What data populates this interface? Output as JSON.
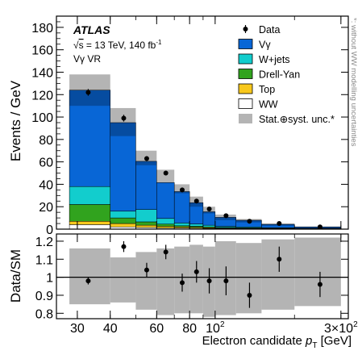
{
  "chart_data": [
    {
      "type": "bar",
      "stacked": true,
      "x_scale": "log",
      "bin_edges": [
        28,
        40,
        50,
        60,
        70,
        80,
        90,
        100,
        120,
        150,
        200,
        300
      ],
      "xlim": [
        25,
        320
      ],
      "ylim": [
        0,
        190
      ],
      "ylabel": "Events / GeV",
      "y_ticks": [
        0,
        20,
        40,
        60,
        80,
        100,
        120,
        140,
        160,
        180
      ],
      "experiment": "ATLAS",
      "info_line1_prefix": "s",
      "info_line1": " = 13 TeV, 140 fb",
      "info_line1_sup": "-1",
      "info_line2": "Vγ VR",
      "side_note": "*: without WW modelling uncertainties",
      "series": [
        {
          "name": "WW",
          "color": "#ffffff",
          "values": [
            4,
            2,
            1.5,
            1,
            1,
            0.8,
            0.6,
            0.5,
            0.4,
            0.3,
            0.2
          ]
        },
        {
          "name": "Top",
          "color": "#f8c81c",
          "values": [
            3,
            3,
            2,
            1.5,
            1,
            0.8,
            0.6,
            0.4,
            0.3,
            0.2,
            0.1
          ]
        },
        {
          "name": "Drell-Yan",
          "color": "#31a31e",
          "values": [
            15,
            5,
            3,
            2,
            1,
            1,
            0.8,
            0.6,
            0.4,
            0.3,
            0.2
          ]
        },
        {
          "name": "W+jets",
          "color": "#12cdcd",
          "values": [
            16,
            6,
            11,
            5,
            2.5,
            2,
            1.5,
            1,
            0.8,
            0.5,
            0.3
          ]
        },
        {
          "name": "Vγ",
          "color": "#0866d6",
          "values": [
            86,
            79,
            43,
            32,
            28,
            19,
            12,
            8,
            6,
            3,
            1.2
          ]
        }
      ],
      "uncertainty": {
        "name": "Stat.⊕syst. unc.*",
        "color": "#b4b4b4",
        "up": [
          138,
          108,
          70,
          53,
          40,
          29,
          20,
          13,
          9,
          5,
          2.3
        ],
        "down": [
          110,
          83,
          57,
          42,
          32,
          20,
          14,
          8,
          6,
          3,
          1.3
        ]
      },
      "data": {
        "name": "Data",
        "x": [
          33,
          45,
          55,
          65,
          75,
          85,
          95,
          110,
          135,
          175,
          250
        ],
        "y": [
          122,
          99,
          63,
          50,
          35,
          25,
          18,
          12,
          7,
          5,
          2
        ],
        "err": [
          3,
          3,
          2,
          2,
          2,
          2,
          1.5,
          1.2,
          1,
          0.8,
          0.6
        ]
      }
    },
    {
      "type": "scatter",
      "x_scale": "log",
      "ylabel": "Data/SM",
      "ylim": [
        0.77,
        1.24
      ],
      "y_ticks": [
        0.8,
        0.9,
        1,
        1.1,
        1.2
      ],
      "xlabel_main": "Electron candidate ",
      "xlabel_var": "p",
      "xlabel_sub": "T",
      "xlabel_unit": " [GeV]",
      "x_ticks": [
        {
          "value": 30,
          "label": "30"
        },
        {
          "value": 40,
          "label": "40"
        },
        {
          "value": 60,
          "label": "60"
        },
        {
          "value": 80,
          "label": "80"
        },
        {
          "value": 100,
          "label": "10",
          "sup": "2"
        },
        {
          "value": 300,
          "label": "3×10",
          "sup": "2"
        }
      ],
      "reference_line": 1.0,
      "band": {
        "up": [
          1.16,
          1.11,
          1.14,
          1.16,
          1.17,
          1.18,
          1.17,
          1.2,
          1.19,
          1.21,
          1.22
        ],
        "down": [
          0.85,
          0.86,
          0.82,
          0.79,
          0.8,
          0.8,
          0.78,
          0.79,
          0.8,
          0.82,
          0.84
        ]
      },
      "points": {
        "x": [
          33,
          45,
          55,
          65,
          75,
          85,
          95,
          110,
          135,
          175,
          250
        ],
        "y": [
          0.98,
          1.17,
          1.04,
          1.14,
          0.97,
          1.03,
          0.98,
          0.98,
          0.9,
          1.1,
          0.96
        ],
        "err": [
          0.02,
          0.03,
          0.04,
          0.04,
          0.05,
          0.06,
          0.07,
          0.08,
          0.07,
          0.07,
          0.07
        ]
      }
    }
  ]
}
